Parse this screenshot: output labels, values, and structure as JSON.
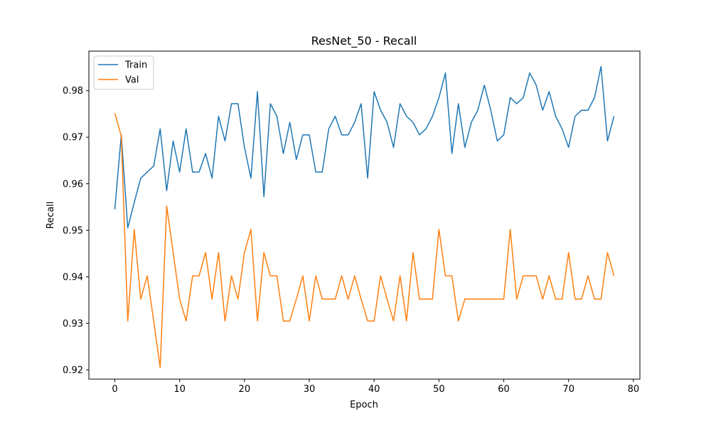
{
  "chart_data": {
    "type": "line",
    "title": "ResNet_50 - Recall",
    "xlabel": "Epoch",
    "ylabel": "Recall",
    "xlim": [
      -4,
      81
    ],
    "ylim": [
      0.918,
      0.9885
    ],
    "xticks": [
      0,
      10,
      20,
      30,
      40,
      50,
      60,
      70,
      80
    ],
    "yticks": [
      0.92,
      0.93,
      0.94,
      0.95,
      0.96,
      0.97,
      0.98
    ],
    "ytick_labels": [
      "0.92",
      "0.93",
      "0.94",
      "0.95",
      "0.96",
      "0.97",
      "0.98"
    ],
    "legend_position": "top-left",
    "grid": false,
    "series": [
      {
        "name": "Train",
        "color": "#1f77b4",
        "values": [
          0.9545,
          0.9705,
          0.9505,
          0.956,
          0.9612,
          0.9625,
          0.9638,
          0.9718,
          0.9585,
          0.9692,
          0.9625,
          0.9718,
          0.9625,
          0.9625,
          0.9665,
          0.9612,
          0.9745,
          0.9692,
          0.9772,
          0.9772,
          0.9678,
          0.9612,
          0.9798,
          0.9572,
          0.9772,
          0.9745,
          0.9665,
          0.9732,
          0.9652,
          0.9705,
          0.9705,
          0.9625,
          0.9625,
          0.9718,
          0.9745,
          0.9705,
          0.9705,
          0.9732,
          0.9772,
          0.9612,
          0.9798,
          0.9758,
          0.9732,
          0.9678,
          0.9772,
          0.9745,
          0.9732,
          0.9705,
          0.9718,
          0.9745,
          0.9785,
          0.9838,
          0.9665,
          0.9772,
          0.9678,
          0.9732,
          0.9758,
          0.9812,
          0.9758,
          0.9692,
          0.9705,
          0.9785,
          0.9772,
          0.9785,
          0.9838,
          0.9812,
          0.9758,
          0.9798,
          0.9745,
          0.9718,
          0.9678,
          0.9745,
          0.9758,
          0.9758,
          0.9785,
          0.9852,
          0.9692,
          0.9745
        ]
      },
      {
        "name": "Val",
        "color": "#ff7f0e",
        "values": [
          0.9752,
          0.9702,
          0.9305,
          0.9502,
          0.9352,
          0.9402,
          0.9305,
          0.9205,
          0.9552,
          0.9452,
          0.9352,
          0.9305,
          0.9402,
          0.9402,
          0.9452,
          0.9352,
          0.9452,
          0.9305,
          0.9402,
          0.9352,
          0.9452,
          0.9502,
          0.9305,
          0.9452,
          0.9402,
          0.9402,
          0.9305,
          0.9305,
          0.9352,
          0.9402,
          0.9305,
          0.9402,
          0.9352,
          0.9352,
          0.9352,
          0.9402,
          0.9352,
          0.9402,
          0.9352,
          0.9305,
          0.9305,
          0.9402,
          0.9352,
          0.9305,
          0.9402,
          0.9305,
          0.9452,
          0.9352,
          0.9352,
          0.9352,
          0.9502,
          0.9402,
          0.9402,
          0.9305,
          0.9352,
          0.9352,
          0.9352,
          0.9352,
          0.9352,
          0.9352,
          0.9352,
          0.9502,
          0.9352,
          0.9402,
          0.9402,
          0.9402,
          0.9352,
          0.9402,
          0.9352,
          0.9352,
          0.9452,
          0.9352,
          0.9352,
          0.9402,
          0.9352,
          0.9352,
          0.9452,
          0.9402
        ]
      }
    ]
  }
}
